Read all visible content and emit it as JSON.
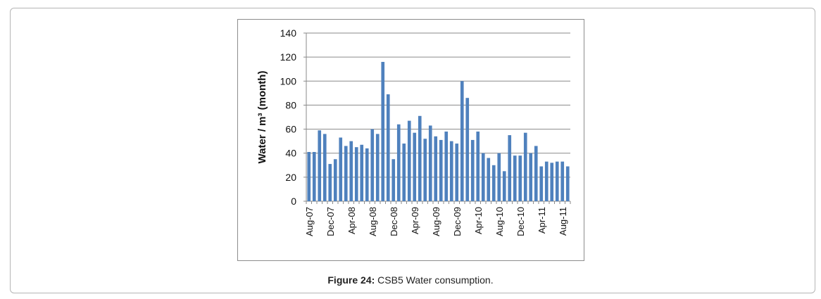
{
  "caption": {
    "label": "Figure 24:",
    "text": " CSB5 Water consumption."
  },
  "chart_data": {
    "type": "bar",
    "ylabel": "Water / m³ (month)",
    "xlabel": "",
    "ylim": [
      0,
      140
    ],
    "yticks": [
      0,
      20,
      40,
      60,
      80,
      100,
      120,
      140
    ],
    "grid": true,
    "bar_color": "#4f81bd",
    "categories": [
      "Aug-07",
      "Sep-07",
      "Oct-07",
      "Nov-07",
      "Dec-07",
      "Jan-08",
      "Feb-08",
      "Mar-08",
      "Apr-08",
      "May-08",
      "Jun-08",
      "Jul-08",
      "Aug-08",
      "Sep-08",
      "Oct-08",
      "Nov-08",
      "Dec-08",
      "Jan-09",
      "Feb-09",
      "Mar-09",
      "Apr-09",
      "May-09",
      "Jun-09",
      "Jul-09",
      "Aug-09",
      "Sep-09",
      "Oct-09",
      "Nov-09",
      "Dec-09",
      "Jan-10",
      "Feb-10",
      "Mar-10",
      "Apr-10",
      "May-10",
      "Jun-10",
      "Jul-10",
      "Aug-10",
      "Sep-10",
      "Oct-10",
      "Nov-10",
      "Dec-10",
      "Jan-11",
      "Feb-11",
      "Mar-11",
      "Apr-11",
      "May-11",
      "Jun-11",
      "Jul-11",
      "Aug-11",
      "Sep-11"
    ],
    "shown_tick_labels": [
      "Aug-07",
      "Dec-07",
      "Apr-08",
      "Aug-08",
      "Dec-08",
      "Apr-09",
      "Aug-09",
      "Dec-09",
      "Apr-10",
      "Aug-10",
      "Dec-10",
      "Apr-11",
      "Aug-11"
    ],
    "values": [
      41,
      41,
      59,
      56,
      31,
      35,
      53,
      46,
      50,
      45,
      47,
      44,
      60,
      56,
      116,
      89,
      35,
      64,
      48,
      67,
      57,
      71,
      52,
      63,
      54,
      51,
      58,
      50,
      48,
      100,
      86,
      51,
      58,
      40,
      36,
      30,
      40,
      25,
      55,
      38,
      38,
      57,
      40,
      46,
      29,
      33,
      32,
      33,
      33,
      29
    ]
  }
}
